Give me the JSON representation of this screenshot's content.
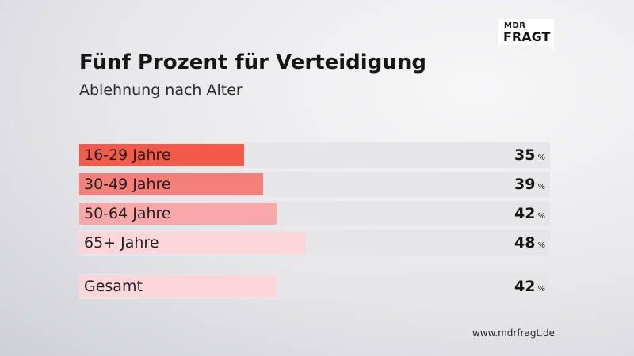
{
  "brand": {
    "line1": "MDR",
    "line2": "FRAGT"
  },
  "chart_data": {
    "type": "bar",
    "orientation": "horizontal",
    "title": "Fünf Prozent für Verteidigung",
    "subtitle": "Ablehnung nach Alter",
    "value_suffix": "%",
    "xlim": [
      0,
      100
    ],
    "categories": [
      "16-29 Jahre",
      "30-49 Jahre",
      "50-64 Jahre",
      "65+ Jahre",
      "Gesamt"
    ],
    "values": [
      35,
      39,
      42,
      48,
      42
    ],
    "colors": [
      "#f25a4a",
      "#f5807a",
      "#f8a8a8",
      "#fcd6db",
      "#fcd6db"
    ]
  },
  "footer": "www.mdrfragt.de"
}
